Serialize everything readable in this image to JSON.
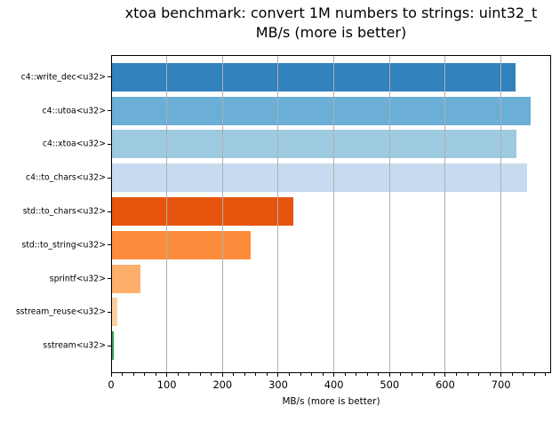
{
  "title": {
    "line1": "xtoa benchmark: convert 1M numbers to strings: uint32_t",
    "line2": "MB/s (more is better)"
  },
  "chart_data": {
    "type": "bar",
    "orientation": "horizontal",
    "title": "xtoa benchmark: convert 1M numbers to strings: uint32_t\nMB/s (more is better)",
    "title_lines": [
      "xtoa benchmark: convert 1M numbers to strings: uint32_t",
      "MB/s (more is better)"
    ],
    "xlabel": "MB/s (more is better)",
    "ylabel": "",
    "categories": [
      "c4::write_dec<u32>",
      "c4::utoa<u32>",
      "c4::xtoa<u32>",
      "c4::to_chars<u32>",
      "std::to_chars<u32>",
      "std::to_string<u32>",
      "sprintf<u32>",
      "sstream_reuse<u32>",
      "sstream<u32>"
    ],
    "values": [
      726,
      753,
      727,
      747,
      327,
      250,
      52,
      11,
      5
    ],
    "bar_colors": [
      "#3182bd",
      "#6baed6",
      "#9ecae1",
      "#c6dbef",
      "#e6550d",
      "#fd8d3c",
      "#fdae6b",
      "#fdd0a2",
      "#31a354"
    ],
    "xlim": [
      0,
      790
    ],
    "x_major_ticks": [
      0,
      100,
      200,
      300,
      400,
      500,
      600,
      700
    ],
    "x_major_tick_labels": [
      "0",
      "100",
      "200",
      "300",
      "400",
      "500",
      "600",
      "700"
    ],
    "x_minor_tick_step": 20,
    "grid": {
      "axis": "x",
      "which": "major",
      "color": "#b0b0b0",
      "above_bars": true
    },
    "legend_position": "none",
    "background_color": "#ffffff",
    "spine_color": "#000000"
  }
}
